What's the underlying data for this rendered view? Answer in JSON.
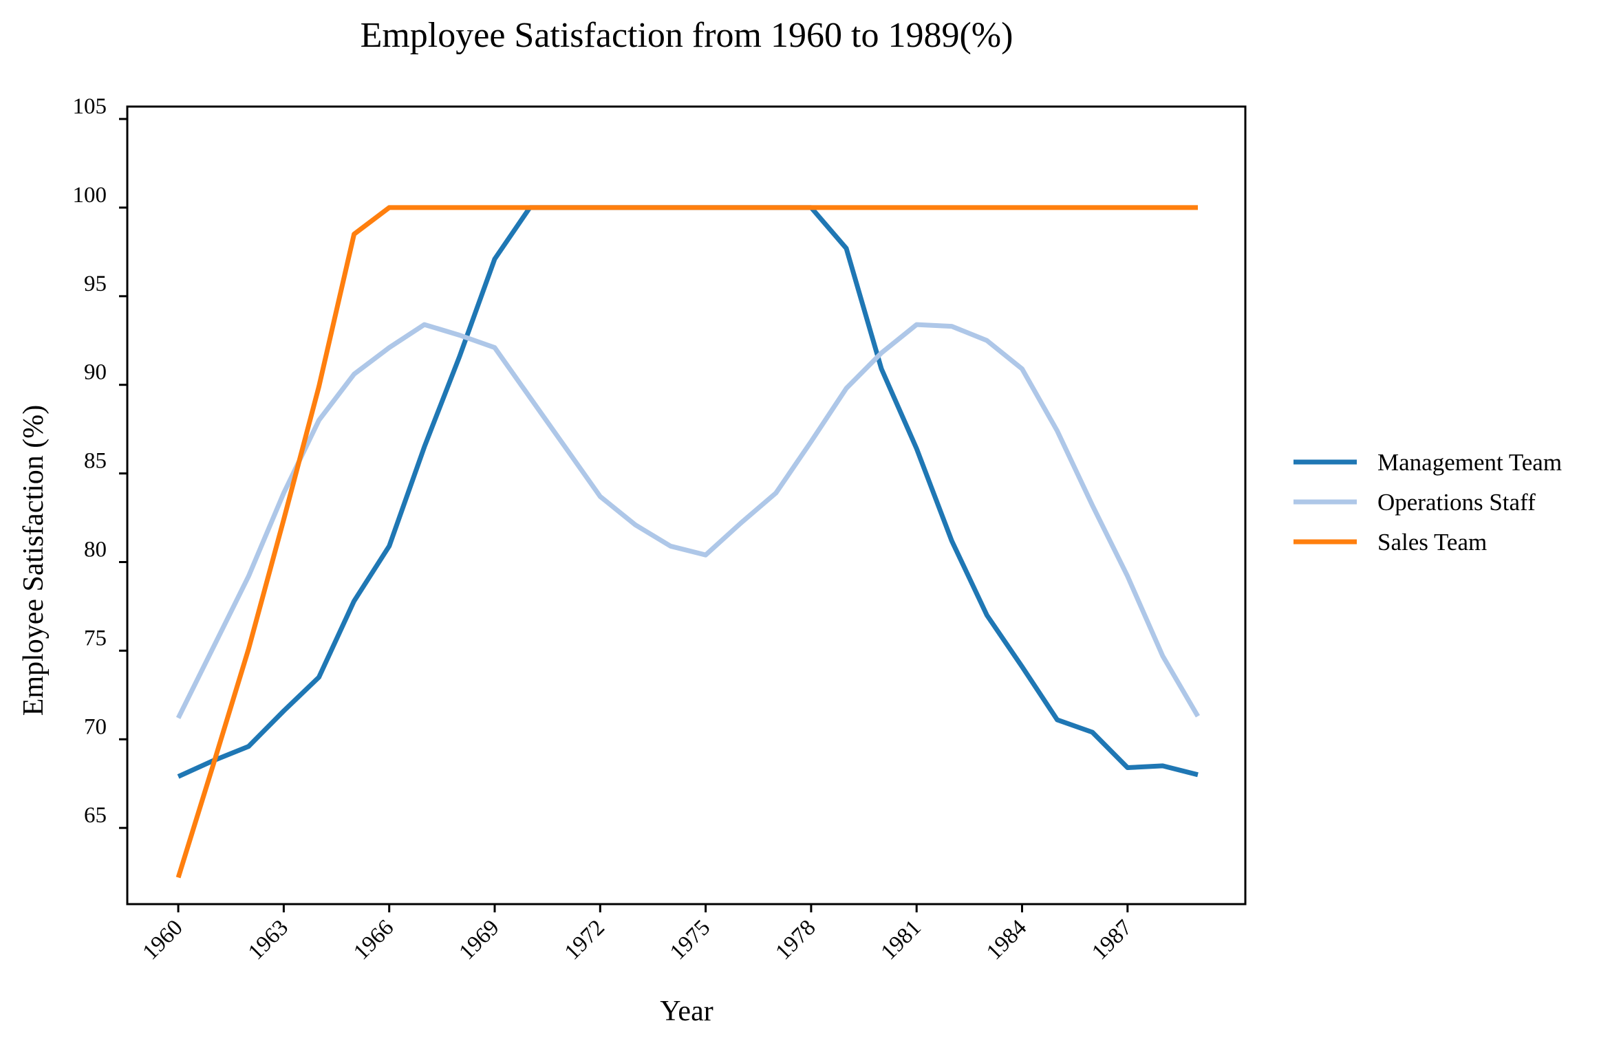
{
  "chart_data": {
    "type": "line",
    "title": "Employee Satisfaction from 1960 to 1989(%)",
    "xlabel": "Year",
    "ylabel": "Employee Satisfaction (%)",
    "x": [
      1960,
      1961,
      1962,
      1963,
      1964,
      1965,
      1966,
      1967,
      1968,
      1969,
      1970,
      1971,
      1972,
      1973,
      1974,
      1975,
      1976,
      1977,
      1978,
      1979,
      1980,
      1981,
      1982,
      1983,
      1984,
      1985,
      1986,
      1987,
      1988,
      1989
    ],
    "xlim": [
      1958.55,
      1990.35
    ],
    "ylim": [
      60.7,
      105.7
    ],
    "x_ticks": [
      1960,
      1963,
      1966,
      1969,
      1972,
      1975,
      1978,
      1981,
      1984,
      1987
    ],
    "y_ticks": [
      65,
      70,
      75,
      80,
      85,
      90,
      95,
      100,
      105
    ],
    "grid": false,
    "legend_position": "right",
    "series": [
      {
        "name": "Management Team",
        "color": "#1f77b4",
        "values": [
          67.9,
          68.8,
          69.6,
          71.6,
          73.5,
          77.8,
          80.9,
          86.5,
          91.6,
          97.1,
          100,
          100,
          100,
          100,
          100,
          100,
          100,
          100,
          100,
          97.7,
          90.9,
          86.4,
          81.2,
          77.0,
          74.1,
          71.1,
          70.4,
          68.4,
          68.5,
          68.0
        ]
      },
      {
        "name": "Operations Staff",
        "color": "#aec7e8",
        "values": [
          71.2,
          75.2,
          79.2,
          83.9,
          88.0,
          90.6,
          92.1,
          93.4,
          92.8,
          92.1,
          89.3,
          86.5,
          83.7,
          82.1,
          80.9,
          80.4,
          82.2,
          83.9,
          86.8,
          89.8,
          91.8,
          93.4,
          93.3,
          92.5,
          90.9,
          87.4,
          83.2,
          79.2,
          74.7,
          71.3
        ]
      },
      {
        "name": "Sales Team",
        "color": "#ff7f0e",
        "values": [
          62.2,
          68.6,
          75.1,
          82.4,
          89.9,
          98.5,
          100,
          100,
          100,
          100,
          100,
          100,
          100,
          100,
          100,
          100,
          100,
          100,
          100,
          100,
          100,
          100,
          100,
          100,
          100,
          100,
          100,
          100,
          100,
          100
        ]
      }
    ]
  }
}
